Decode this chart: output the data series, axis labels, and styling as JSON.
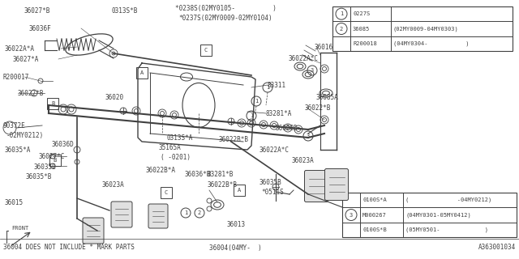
{
  "bg_color": "#ffffff",
  "line_color": "#404040",
  "bottom_left_text": "36004 DOES NOT INCLUDE * MARK PARTS",
  "bottom_center_text": "36004(04MY-  )",
  "bottom_right_text": "A363001034",
  "top_table_rows": [
    [
      "1",
      "0227S",
      ""
    ],
    [
      "2",
      "36085",
      "(02MY0009-04MY0303)"
    ],
    [
      "",
      "R200018",
      "(04MY0304-           )"
    ]
  ],
  "bottom_table_rows": [
    [
      "",
      "0100S*A",
      "(              -04MY0212)"
    ],
    [
      "3",
      "M000267",
      "(04MY0301-05MY0412)"
    ],
    [
      "",
      "0100S*B",
      "(05MY0501-             )"
    ]
  ]
}
